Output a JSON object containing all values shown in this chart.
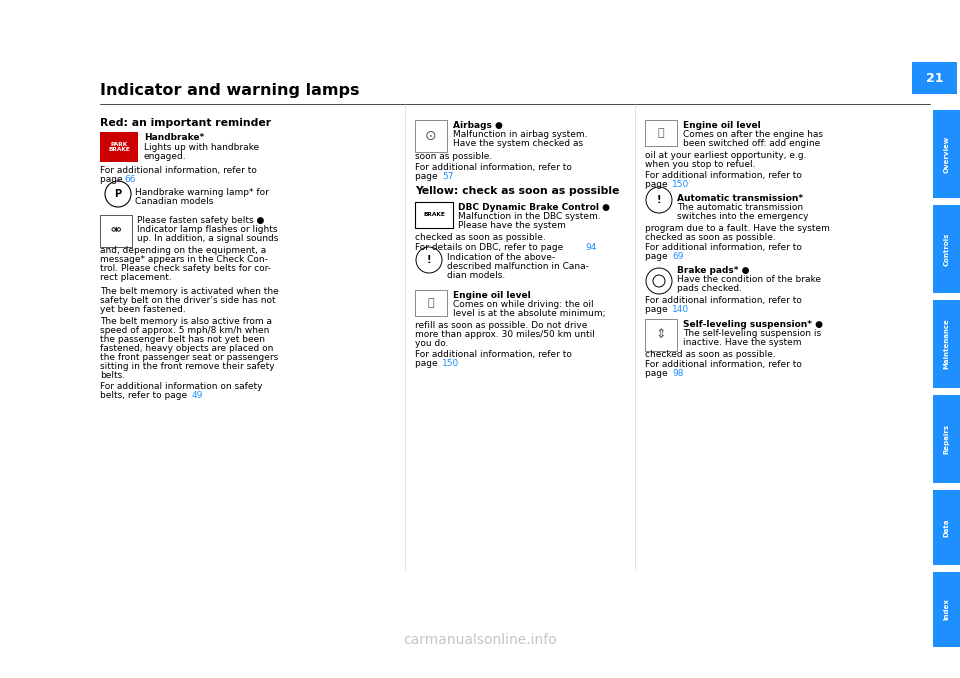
{
  "page_bg": "#ffffff",
  "page_number": "21",
  "title": "Indicator and warning lamps",
  "title_fontsize": 11.5,
  "title_color": "#000000",
  "tab_color": "#1e8fff",
  "tab_labels": [
    "Overview",
    "Controls",
    "Maintenance",
    "Repairs",
    "Data",
    "Index"
  ],
  "tab_text_color": "#ffffff",
  "section_red_title": "Red: an important reminder",
  "section_yellow_title": "Yellow: check as soon as possible",
  "watermark": "carmanualsonline.info",
  "watermark_color": "#bbbbbb",
  "body_fontsize": 6.5,
  "header_fontsize": 8.0,
  "blue_link_color": "#1e8fff"
}
